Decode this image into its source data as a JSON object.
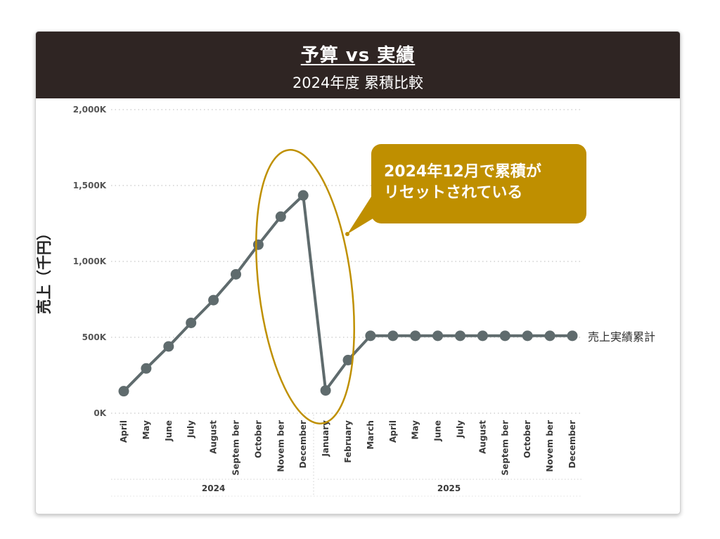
{
  "header": {
    "title": "予算 vs 実績",
    "subtitle": "2024年度 累積比較"
  },
  "annotation": {
    "line1": "2024年12月で累積が",
    "line2": "リセットされている"
  },
  "colors": {
    "banner": "#2f2523",
    "series": "#5f6b6d",
    "annotation": "#bf8f00"
  },
  "chart_data": {
    "type": "line",
    "title": "予算 vs 実績",
    "subtitle": "2024年度 累積比較",
    "ylabel": "売上（千円）",
    "xlabel": "",
    "ylim": [
      0,
      2000000
    ],
    "yticks": [
      {
        "value": 0,
        "label": "0K"
      },
      {
        "value": 500000,
        "label": "500K"
      },
      {
        "value": 1000000,
        "label": "1,000K"
      },
      {
        "value": 1500000,
        "label": "1,500K"
      },
      {
        "value": 2000000,
        "label": "2,000K"
      }
    ],
    "grid": true,
    "categories": [
      "April",
      "May",
      "June",
      "July",
      "August",
      "September",
      "October",
      "November",
      "December",
      "January",
      "February",
      "March",
      "April",
      "May",
      "June",
      "July",
      "August",
      "September",
      "October",
      "November",
      "December"
    ],
    "category_labels": [
      "April",
      "May",
      "June",
      "July",
      "August",
      "Septem ber",
      "October",
      "Novem ber",
      "December",
      "January",
      "February",
      "March",
      "April",
      "May",
      "June",
      "July",
      "August",
      "Septem ber",
      "October",
      "Novem ber",
      "December"
    ],
    "years": [
      {
        "label": "2024",
        "start": 0,
        "end": 8
      },
      {
        "label": "2025",
        "start": 9,
        "end": 20
      }
    ],
    "series": [
      {
        "name": "売上実績累計",
        "values": [
          145000,
          295000,
          440000,
          595000,
          745000,
          915000,
          1110000,
          1295000,
          1435000,
          150000,
          350000,
          510000,
          510000,
          510000,
          510000,
          510000,
          510000,
          510000,
          510000,
          510000,
          510000
        ]
      }
    ],
    "annotations": [
      {
        "text": "2024年12月で累積がリセットされている",
        "target": "December 2024 – January 2025"
      }
    ]
  }
}
